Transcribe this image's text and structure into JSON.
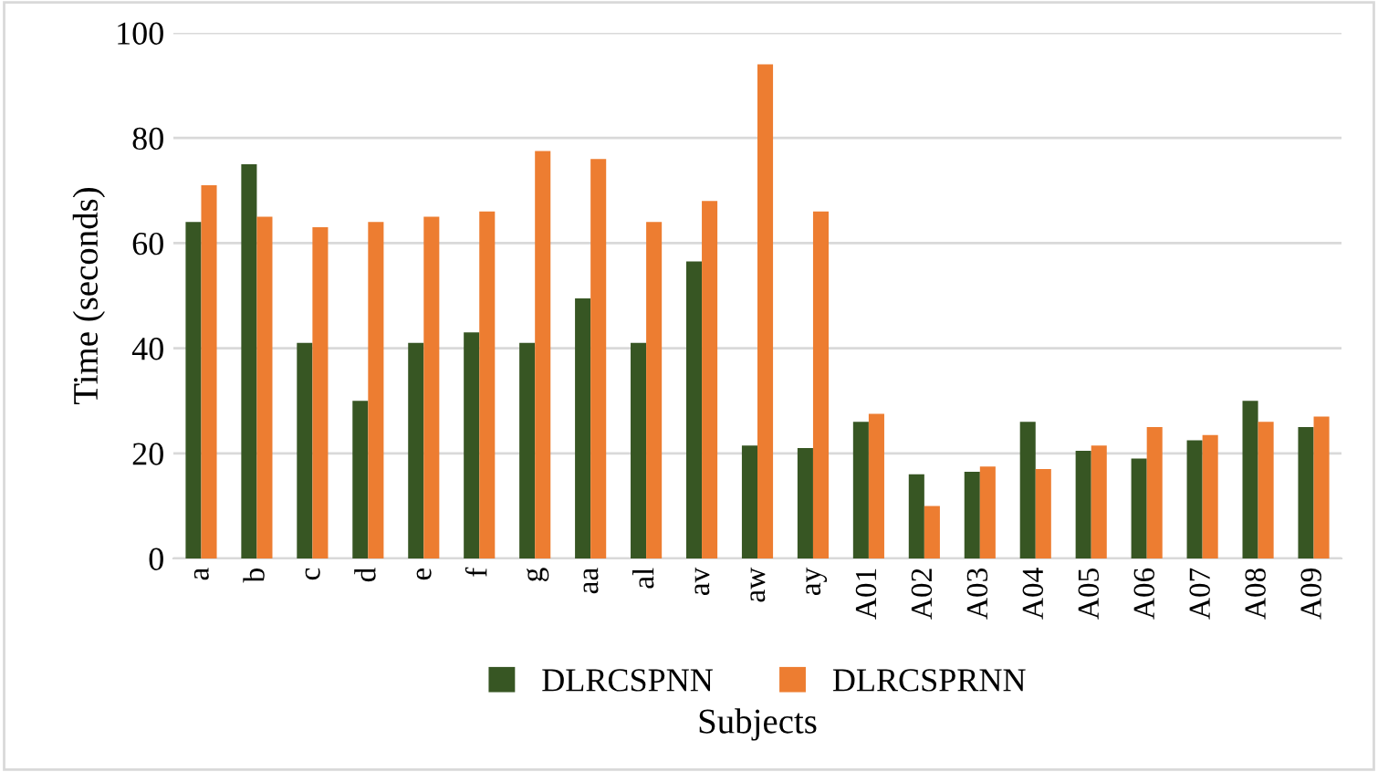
{
  "chart_data": {
    "type": "bar",
    "xlabel": "Subjects",
    "ylabel": "Time (seconds)",
    "categories": [
      "a",
      "b",
      "c",
      "d",
      "e",
      "f",
      "g",
      "aa",
      "al",
      "av",
      "aw",
      "ay",
      "A01",
      "A02",
      "A03",
      "A04",
      "A05",
      "A06",
      "A07",
      "A08",
      "A09"
    ],
    "series": [
      {
        "name": "DLRCSPNN",
        "color": "#375623",
        "values": [
          64,
          75,
          41,
          30,
          41,
          43,
          41,
          49.5,
          41,
          56.5,
          21.5,
          21,
          26,
          16,
          16.5,
          26,
          20.5,
          19,
          22.5,
          30,
          25
        ]
      },
      {
        "name": "DLRCSPRNN",
        "color": "#ed7d31",
        "values": [
          71,
          65,
          63,
          64,
          65,
          66,
          77.5,
          76,
          64,
          68,
          94,
          66,
          27.5,
          10,
          17.5,
          17,
          21.5,
          25,
          23.5,
          26,
          27
        ]
      }
    ],
    "ylim": [
      0,
      100
    ],
    "yticks": [
      0,
      20,
      40,
      60,
      80,
      100
    ],
    "grid": "y",
    "legend": "bottom"
  }
}
